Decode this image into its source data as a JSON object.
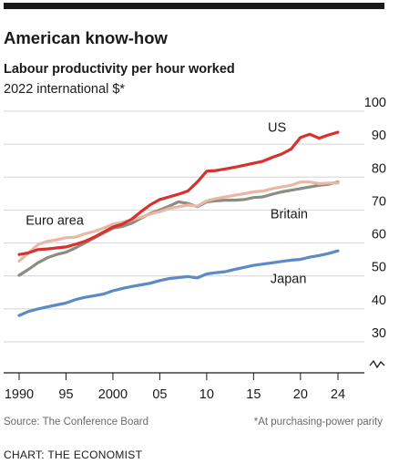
{
  "chart_data": {
    "type": "line",
    "title": "American know-how",
    "subtitle": "Labour productivity per hour worked",
    "unit_label": "2022 international $*",
    "source": "Source: The Conference Board",
    "footnote": "*At purchasing-power parity",
    "credit": "CHART: THE ECONOMIST",
    "x_ticks": [
      {
        "value": 1990,
        "label": "1990"
      },
      {
        "value": 1995,
        "label": "95"
      },
      {
        "value": 2000,
        "label": "2000"
      },
      {
        "value": 2005,
        "label": "05"
      },
      {
        "value": 2010,
        "label": "10"
      },
      {
        "value": 2015,
        "label": "15"
      },
      {
        "value": 2020,
        "label": "20"
      },
      {
        "value": 2024,
        "label": "24"
      }
    ],
    "y_ticks": [
      {
        "value": 30,
        "label": "30"
      },
      {
        "value": 40,
        "label": "40"
      },
      {
        "value": 50,
        "label": "50"
      },
      {
        "value": 60,
        "label": "60"
      },
      {
        "value": 70,
        "label": "70"
      },
      {
        "value": 80,
        "label": "80"
      },
      {
        "value": 90,
        "label": "90"
      },
      {
        "value": 100,
        "label": "100"
      }
    ],
    "xlim": [
      1990,
      2024
    ],
    "ylim": [
      30,
      100
    ],
    "axis_break": true,
    "grid": true,
    "x": [
      1990,
      1991,
      1992,
      1993,
      1994,
      1995,
      1996,
      1997,
      1998,
      1999,
      2000,
      2001,
      2002,
      2003,
      2004,
      2005,
      2006,
      2007,
      2008,
      2009,
      2010,
      2011,
      2012,
      2013,
      2014,
      2015,
      2016,
      2017,
      2018,
      2019,
      2020,
      2021,
      2022,
      2023,
      2024
    ],
    "series": [
      {
        "name": "US",
        "color": "#d7322e",
        "values": [
          56.5,
          57.0,
          58.0,
          58.2,
          58.5,
          58.8,
          59.6,
          60.5,
          61.8,
          63.3,
          64.8,
          65.7,
          67.2,
          69.5,
          71.6,
          73.2,
          74.0,
          74.8,
          75.8,
          78.5,
          81.8,
          82.0,
          82.5,
          83.0,
          83.6,
          84.2,
          84.8,
          86.0,
          87.0,
          88.5,
          92.0,
          93.0,
          91.8,
          92.8,
          93.6
        ]
      },
      {
        "name": "Euro area",
        "color": "#eab7a4",
        "values": [
          54.5,
          57.0,
          59.5,
          60.5,
          61.0,
          61.6,
          61.8,
          62.8,
          63.5,
          64.5,
          65.7,
          66.3,
          67.0,
          67.8,
          68.8,
          69.5,
          70.5,
          71.0,
          71.5,
          71.2,
          72.8,
          73.5,
          74.0,
          74.5,
          75.0,
          75.5,
          75.8,
          76.5,
          77.0,
          77.5,
          78.5,
          78.5,
          78.0,
          78.2,
          78.2
        ]
      },
      {
        "name": "Britain",
        "color": "#8c8c84",
        "values": [
          50.2,
          52.0,
          54.0,
          55.5,
          56.5,
          57.2,
          58.5,
          60.0,
          61.5,
          63.0,
          64.5,
          65.0,
          66.0,
          67.5,
          69.0,
          70.0,
          71.2,
          72.5,
          72.0,
          71.0,
          72.5,
          72.8,
          73.0,
          73.0,
          73.2,
          73.8,
          74.0,
          74.8,
          75.5,
          76.0,
          76.5,
          77.0,
          77.5,
          77.8,
          78.5
        ]
      },
      {
        "name": "Japan",
        "color": "#5b8ac5",
        "values": [
          38.0,
          39.2,
          40.0,
          40.6,
          41.2,
          41.8,
          42.8,
          43.5,
          44.0,
          44.5,
          45.5,
          46.2,
          46.8,
          47.3,
          47.8,
          48.6,
          49.2,
          49.5,
          49.8,
          49.4,
          50.6,
          51.0,
          51.3,
          52.0,
          52.6,
          53.2,
          53.6,
          54.0,
          54.4,
          54.8,
          55.0,
          55.7,
          56.2,
          56.8,
          57.6
        ]
      }
    ],
    "series_labels": [
      {
        "series": "US",
        "text": "US",
        "x": 2017.5,
        "y": 93.8,
        "anchor": "middle"
      },
      {
        "series": "Euro area",
        "text": "Euro area",
        "x": 1990.7,
        "y": 65.5,
        "anchor": "start"
      },
      {
        "series": "Britain",
        "text": "Britain",
        "x": 2016.8,
        "y": 67.5,
        "anchor": "start"
      },
      {
        "series": "Japan",
        "text": "Japan",
        "x": 2016.8,
        "y": 47.8,
        "anchor": "start"
      }
    ],
    "colors": {
      "top_bar": "#1a1a1a",
      "grid": "#d4d4d4",
      "axis": "#1a1a1a",
      "muted_text": "#6a6a6a"
    }
  }
}
